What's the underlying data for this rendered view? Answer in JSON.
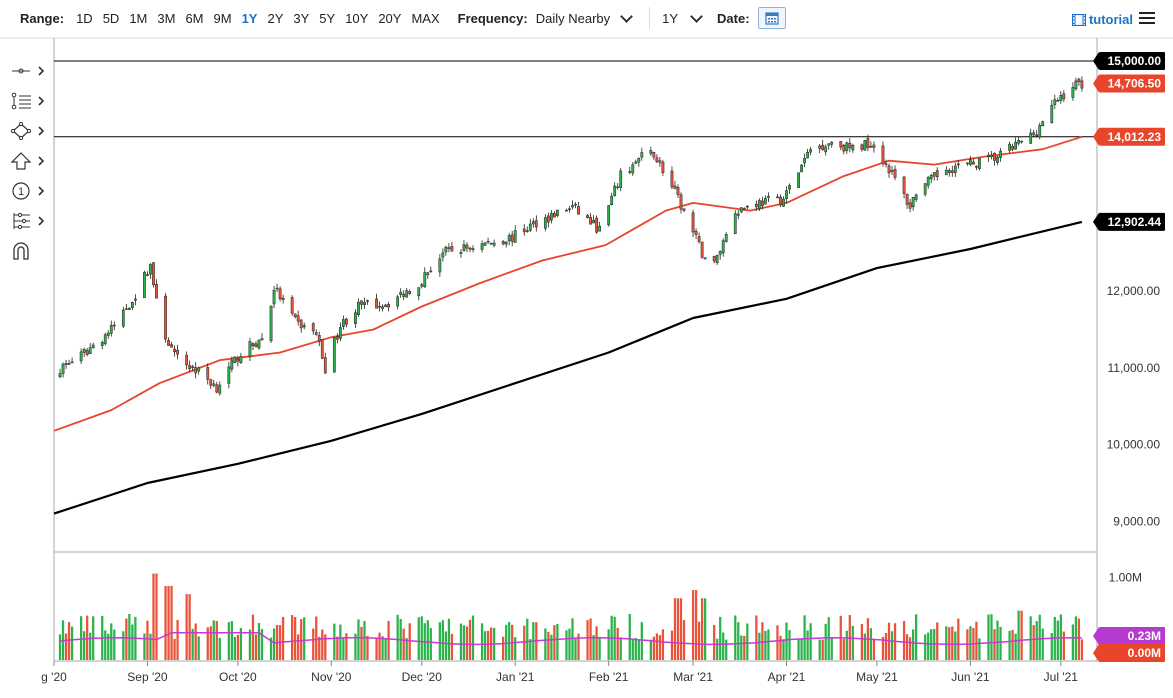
{
  "toolbar": {
    "range_label": "Range:",
    "ranges": [
      "1D",
      "5D",
      "1M",
      "3M",
      "6M",
      "9M",
      "1Y",
      "2Y",
      "3Y",
      "5Y",
      "10Y",
      "20Y",
      "MAX"
    ],
    "active_range": "1Y",
    "frequency_label": "Frequency:",
    "frequency_value": "Daily Nearby",
    "period_value": "1Y",
    "date_label": "Date:",
    "tutorial_label": "tutorial"
  },
  "side_tools": [
    "crosshair-tool-icon",
    "fibonacci-tool-icon",
    "shapes-tool-icon",
    "arrow-tool-icon",
    "label-tool-icon",
    "pitchfork-tool-icon",
    "magnet-tool-icon"
  ],
  "colors": {
    "up": "#2ab34a",
    "down": "#e8533a",
    "ma_fast": "#e8452a",
    "ma_slow": "#000000",
    "vol_ma": "#c838d6",
    "badge_dark": "#000000",
    "badge_red": "#e8452a",
    "badge_purple": "#b43ad0"
  },
  "chart_data": {
    "type": "line",
    "description_series": [
      "price-candles",
      "moving-average-50",
      "moving-average-200",
      "volume"
    ],
    "ylim": [
      8600,
      15300
    ],
    "yticks": [
      "9,000.00",
      "10,000.00",
      "11,000.00",
      "12,000.00"
    ],
    "ytick_values": [
      9000,
      10000,
      11000,
      12000
    ],
    "xticks": [
      "g '20",
      "Sep '20",
      "Oct '20",
      "Nov '20",
      "Dec '20",
      "Jan '21",
      "Feb '21",
      "Mar '21",
      "Apr '21",
      "May '21",
      "Jun '21",
      "Jul '21"
    ],
    "xtick_dates": [
      "2020-08-01",
      "2020-09-01",
      "2020-10-01",
      "2020-11-01",
      "2020-12-01",
      "2021-01-01",
      "2021-02-01",
      "2021-03-01",
      "2021-04-01",
      "2021-05-01",
      "2021-06-01",
      "2021-07-01"
    ],
    "x_range": [
      "2020-08-01",
      "2021-07-13"
    ],
    "price_path": [
      [
        "2020-08-01",
        10950
      ],
      [
        "2020-08-10",
        11150
      ],
      [
        "2020-08-20",
        11500
      ],
      [
        "2020-08-28",
        11950
      ],
      [
        "2020-09-02",
        12350
      ],
      [
        "2020-09-05",
        11600
      ],
      [
        "2020-09-10",
        11150
      ],
      [
        "2020-09-18",
        10950
      ],
      [
        "2020-09-24",
        10750
      ],
      [
        "2020-10-02",
        11200
      ],
      [
        "2020-10-10",
        11400
      ],
      [
        "2020-10-13",
        12050
      ],
      [
        "2020-10-20",
        11600
      ],
      [
        "2020-10-27",
        11450
      ],
      [
        "2020-10-30",
        11000
      ],
      [
        "2020-11-04",
        11550
      ],
      [
        "2020-11-10",
        11800
      ],
      [
        "2020-11-20",
        11850
      ],
      [
        "2020-11-30",
        12100
      ],
      [
        "2020-12-08",
        12500
      ],
      [
        "2020-12-20",
        12600
      ],
      [
        "2020-12-31",
        12700
      ],
      [
        "2021-01-08",
        12900
      ],
      [
        "2021-01-20",
        13100
      ],
      [
        "2021-01-29",
        12800
      ],
      [
        "2021-02-05",
        13500
      ],
      [
        "2021-02-12",
        13750
      ],
      [
        "2021-02-16",
        13800
      ],
      [
        "2021-02-24",
        13200
      ],
      [
        "2021-03-04",
        12500
      ],
      [
        "2021-03-08",
        12350
      ],
      [
        "2021-03-15",
        13050
      ],
      [
        "2021-03-22",
        13150
      ],
      [
        "2021-03-31",
        13200
      ],
      [
        "2021-04-09",
        13850
      ],
      [
        "2021-04-16",
        13950
      ],
      [
        "2021-04-23",
        13850
      ],
      [
        "2021-04-29",
        13950
      ],
      [
        "2021-05-05",
        13600
      ],
      [
        "2021-05-12",
        13100
      ],
      [
        "2021-05-14",
        13300
      ],
      [
        "2021-05-24",
        13600
      ],
      [
        "2021-06-01",
        13650
      ],
      [
        "2021-06-10",
        13750
      ],
      [
        "2021-06-22",
        14050
      ],
      [
        "2021-06-30",
        14500
      ],
      [
        "2021-07-06",
        14700
      ],
      [
        "2021-07-08",
        14706.5
      ]
    ],
    "moving_average_50": [
      [
        "2020-08-01",
        10180
      ],
      [
        "2020-08-20",
        10450
      ],
      [
        "2020-09-05",
        10800
      ],
      [
        "2020-09-25",
        11100
      ],
      [
        "2020-10-15",
        11200
      ],
      [
        "2020-11-01",
        11400
      ],
      [
        "2020-11-15",
        11500
      ],
      [
        "2020-12-01",
        11800
      ],
      [
        "2020-12-20",
        12100
      ],
      [
        "2021-01-10",
        12400
      ],
      [
        "2021-01-31",
        12600
      ],
      [
        "2021-02-20",
        13050
      ],
      [
        "2021-03-01",
        13150
      ],
      [
        "2021-03-20",
        13050
      ],
      [
        "2021-04-01",
        13150
      ],
      [
        "2021-04-20",
        13500
      ],
      [
        "2021-05-05",
        13700
      ],
      [
        "2021-05-20",
        13650
      ],
      [
        "2021-06-05",
        13750
      ],
      [
        "2021-06-25",
        13850
      ],
      [
        "2021-07-08",
        14012.23
      ]
    ],
    "moving_average_200": [
      [
        "2020-08-01",
        9100
      ],
      [
        "2020-09-01",
        9500
      ],
      [
        "2020-10-01",
        9750
      ],
      [
        "2020-11-01",
        10050
      ],
      [
        "2020-12-01",
        10400
      ],
      [
        "2021-01-01",
        10800
      ],
      [
        "2021-02-01",
        11200
      ],
      [
        "2021-03-01",
        11650
      ],
      [
        "2021-04-01",
        11900
      ],
      [
        "2021-05-01",
        12300
      ],
      [
        "2021-06-01",
        12550
      ],
      [
        "2021-07-08",
        12902.44
      ]
    ],
    "horizontal_lines": [
      15000,
      14012.23
    ],
    "price_badges": [
      {
        "label": "15,000.00",
        "value": 15000,
        "style": "dark"
      },
      {
        "label": "14,706.50",
        "value": 14706.5,
        "style": "red"
      },
      {
        "label": "14,012.23",
        "value": 14012.23,
        "style": "red"
      },
      {
        "label": "12,902.44",
        "value": 12902.44,
        "style": "dark"
      }
    ],
    "volume": {
      "ytick_label": "1.00M",
      "ytick_value": 1000000,
      "ylim": [
        0,
        1300000
      ],
      "badges": [
        {
          "label": "0.23M",
          "value": 230000,
          "style": "purple"
        },
        {
          "label": "0.00M",
          "value": 0,
          "style": "red"
        }
      ],
      "typical_level": 0.35,
      "spikes": [
        [
          "2020-09-04",
          1.05
        ],
        [
          "2020-09-08",
          0.9
        ],
        [
          "2020-09-14",
          0.8
        ],
        [
          "2021-02-24",
          0.75
        ],
        [
          "2021-03-01",
          0.85
        ],
        [
          "2021-03-05",
          0.75
        ],
        [
          "2021-06-18",
          0.6
        ]
      ]
    }
  }
}
